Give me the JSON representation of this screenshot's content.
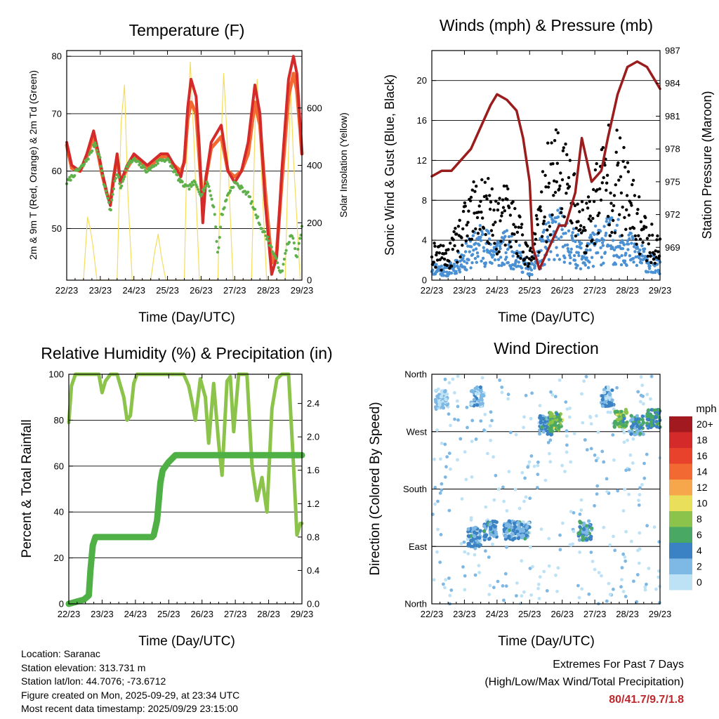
{
  "panels": {
    "temperature": {
      "title": "Temperature (F)",
      "left_label": "2m & 9m T (Red, Orange) & 2m Td (Green)",
      "right_label": "Solar Insolation (Yellow)",
      "xlabel": "Time (Day/UTC)"
    },
    "winds": {
      "title": "Winds (mph) & Pressure (mb)",
      "left_label": "Sonic Wind & Gust (Blue, Black)",
      "right_label": "Station Pressure (Maroon)",
      "xlabel": "Time (Day/UTC)"
    },
    "humidity": {
      "title": "Relative Humidity (%) & Precipitation (in)",
      "left_label": "Percent & Total Rainfall",
      "xlabel": "Time (Day/UTC)"
    },
    "direction": {
      "title": "Wind Direction",
      "left_label": "Direction (Colored By Speed)",
      "xlabel": "Time (Day/UTC)"
    }
  },
  "legend": {
    "unit": "mph",
    "labels": [
      "20+",
      "18",
      "16",
      "14",
      "12",
      "10",
      "8",
      "6",
      "4",
      "2",
      "0"
    ],
    "colors": [
      "#a21a1f",
      "#d42a2a",
      "#e8412c",
      "#f26a31",
      "#f6a74c",
      "#e9df5a",
      "#8cc44b",
      "#4aa865",
      "#3b82c4",
      "#7eb8e4",
      "#bde2f5"
    ]
  },
  "info": {
    "location": "Location: Saranac",
    "elevation": "Station elevation: 313.731 m",
    "latlon": "Station lat/lon: 44.7076; -73.6712",
    "created": "Figure created on Mon, 2025-09-29, at 23:34 UTC",
    "recent": "Most recent data timestamp: 2025/09/29 23:15:00"
  },
  "extremes": {
    "title": "Extremes For Past 7 Days",
    "subtitle": "(High/Low/Max Wind/Total Precipitation)",
    "value": "80/41.7/9.7/1.8"
  },
  "chart_data": [
    {
      "type": "line",
      "title": "Temperature (F)",
      "xlabel": "Time (Day/UTC)",
      "x_ticks": [
        "22/23",
        "23/23",
        "24/23",
        "25/23",
        "26/23",
        "27/23",
        "28/23",
        "29/23"
      ],
      "xlim": [
        0,
        7
      ],
      "ylabel": "2m & 9m T (Red, Orange) & 2m Td (Green)",
      "ylim": [
        41,
        81
      ],
      "yticks": [
        50,
        60,
        70,
        80
      ],
      "y2label": "Solar Insolation (Yellow)",
      "y2lim": [
        0,
        800
      ],
      "y2ticks": [
        0,
        200,
        400,
        600
      ],
      "series": [
        {
          "name": "2m T",
          "color": "#d42a2a",
          "axis": "left",
          "x": [
            0,
            0.15,
            0.4,
            0.6,
            0.8,
            0.95,
            1.05,
            1.2,
            1.3,
            1.4,
            1.5,
            1.6,
            1.8,
            2.0,
            2.2,
            2.4,
            2.6,
            2.8,
            3.0,
            3.2,
            3.4,
            3.5,
            3.6,
            3.7,
            3.85,
            3.95,
            4.05,
            4.15,
            4.3,
            4.6,
            4.8,
            5.0,
            5.2,
            5.4,
            5.6,
            5.75,
            5.9,
            6.1,
            6.25,
            6.4,
            6.6,
            6.75,
            6.85,
            6.95,
            7.0
          ],
          "y": [
            65,
            61,
            60,
            63,
            67,
            63,
            60,
            56,
            54,
            59,
            63,
            58,
            61,
            63,
            62,
            61,
            62,
            63,
            63,
            61,
            59,
            62,
            71,
            76,
            73,
            64,
            51,
            59,
            65,
            68,
            60,
            58,
            60,
            65,
            75,
            70,
            55,
            42,
            45,
            60,
            76,
            80,
            77,
            68,
            63
          ]
        },
        {
          "name": "9m T",
          "color": "#f26a31",
          "axis": "left",
          "x": [
            0,
            0.15,
            0.4,
            0.6,
            0.8,
            0.95,
            1.05,
            1.2,
            1.3,
            1.4,
            1.5,
            1.6,
            1.8,
            2.0,
            2.2,
            2.4,
            2.6,
            2.8,
            3.0,
            3.2,
            3.4,
            3.5,
            3.6,
            3.7,
            3.85,
            3.95,
            4.05,
            4.15,
            4.3,
            4.6,
            4.8,
            5.0,
            5.2,
            5.4,
            5.6,
            5.75,
            5.9,
            6.1,
            6.25,
            6.4,
            6.6,
            6.75,
            6.85,
            6.95,
            7.0
          ],
          "y": [
            64.5,
            60.5,
            60,
            62.5,
            66,
            62.5,
            59.5,
            56,
            54.5,
            59,
            62.5,
            58,
            60.5,
            62.5,
            61.5,
            60.5,
            61.5,
            62.5,
            62.5,
            61,
            60,
            61.5,
            69,
            72,
            70,
            62,
            54,
            59,
            64,
            66,
            60,
            59,
            60,
            63,
            72,
            68,
            57,
            44,
            46,
            58,
            73,
            77,
            74,
            67,
            63
          ]
        },
        {
          "name": "2m Td",
          "color": "#5fb04a",
          "axis": "left",
          "x": [
            0,
            0.3,
            0.5,
            0.7,
            0.85,
            1.0,
            1.1,
            1.2,
            1.3,
            1.4,
            1.5,
            1.6,
            1.8,
            2.0,
            2.2,
            2.4,
            2.6,
            2.8,
            3.0,
            3.2,
            3.4,
            3.6,
            3.8,
            4.0,
            4.2,
            4.4,
            4.5,
            4.6,
            4.8,
            5.0,
            5.2,
            5.4,
            5.6,
            5.8,
            6.0,
            6.2,
            6.4,
            6.55,
            6.7,
            6.85,
            7.0
          ],
          "y": [
            58,
            60,
            61,
            63,
            65,
            62,
            58,
            56,
            53,
            57,
            60,
            57,
            61,
            62,
            61,
            60,
            61,
            62,
            62,
            60,
            58,
            57,
            58,
            56,
            58,
            53,
            45,
            52,
            56,
            58,
            57,
            56,
            53,
            50,
            48,
            45,
            42,
            47,
            49,
            45,
            50
          ]
        },
        {
          "name": "Solar Insolation",
          "color": "#f5dc5c",
          "axis": "right",
          "x": [
            0.5,
            0.62,
            0.7,
            0.78,
            0.9,
            1.5,
            1.62,
            1.72,
            1.82,
            1.95,
            2.5,
            2.62,
            2.72,
            2.82,
            2.95,
            3.5,
            3.6,
            3.68,
            3.78,
            3.95,
            4.5,
            4.6,
            4.67,
            4.75,
            4.95,
            5.5,
            5.6,
            5.67,
            5.75,
            5.95,
            6.5,
            6.6,
            6.67,
            6.75,
            6.95
          ],
          "y": [
            0,
            220,
            180,
            120,
            0,
            0,
            550,
            680,
            300,
            0,
            0,
            100,
            160,
            80,
            0,
            0,
            580,
            760,
            500,
            0,
            0,
            500,
            720,
            550,
            0,
            0,
            520,
            700,
            480,
            0,
            0,
            450,
            660,
            420,
            0
          ]
        }
      ]
    },
    {
      "type": "scatter",
      "title": "Winds (mph) & Pressure (mb)",
      "xlabel": "Time (Day/UTC)",
      "x_ticks": [
        "22/23",
        "23/23",
        "24/23",
        "25/23",
        "26/23",
        "27/23",
        "28/23",
        "29/23"
      ],
      "xlim": [
        0,
        7
      ],
      "ylabel": "Sonic Wind & Gust (Blue, Black)",
      "ylim": [
        0,
        23
      ],
      "yticks": [
        0,
        4,
        8,
        12,
        16,
        20
      ],
      "y2label": "Station Pressure (Maroon)",
      "y2lim": [
        966,
        987
      ],
      "y2ticks": [
        969,
        972,
        975,
        978,
        981,
        984,
        987
      ],
      "series": [
        {
          "name": "Sonic Wind (envelope)",
          "color": "#4a90d2",
          "axis": "left",
          "x": [
            0,
            0.5,
            1.0,
            1.5,
            1.9,
            2.3,
            2.7,
            3.0,
            3.3,
            3.6,
            3.9,
            4.3,
            4.7,
            5.0,
            5.4,
            5.8,
            6.2,
            6.6,
            7.0
          ],
          "y": [
            2.0,
            1.5,
            3.5,
            6.0,
            4.5,
            5.0,
            3.5,
            1.5,
            4.0,
            6.5,
            7.5,
            5.5,
            3.5,
            5.5,
            6.5,
            6.0,
            4.5,
            3.0,
            2.0
          ]
        },
        {
          "name": "Gust",
          "color": "#000000",
          "axis": "left",
          "x": [
            0,
            0.5,
            1.0,
            1.5,
            1.9,
            2.3,
            2.7,
            3.0,
            3.3,
            3.6,
            3.9,
            4.3,
            4.7,
            5.0,
            5.4,
            5.8,
            6.2,
            6.6,
            7.0
          ],
          "y": [
            3.5,
            3.0,
            7.0,
            11.0,
            8.0,
            9.0,
            6.5,
            2.5,
            8.0,
            13.5,
            15.0,
            11.5,
            7.0,
            11.0,
            15.0,
            13.5,
            9.0,
            6.0,
            4.0
          ]
        },
        {
          "name": "Station Pressure",
          "color": "#9b1c1c",
          "axis": "right",
          "x": [
            0,
            0.3,
            0.6,
            0.9,
            1.2,
            1.5,
            1.8,
            2.0,
            2.3,
            2.6,
            2.8,
            3.0,
            3.1,
            3.3,
            3.6,
            3.9,
            4.1,
            4.4,
            4.6,
            4.9,
            5.2,
            5.4,
            5.7,
            6.0,
            6.3,
            6.6,
            6.9,
            7.0
          ],
          "y": [
            975.5,
            976,
            976,
            977,
            978,
            980,
            982,
            983,
            982.5,
            981.5,
            979,
            975,
            969,
            967,
            969,
            971,
            971,
            974,
            979,
            975,
            976,
            979,
            983,
            985.5,
            986,
            985.5,
            984,
            983.5
          ]
        }
      ]
    },
    {
      "type": "line",
      "title": "Relative Humidity (%) & Precipitation (in)",
      "xlabel": "Time (Day/UTC)",
      "x_ticks": [
        "22/23",
        "23/23",
        "24/23",
        "25/23",
        "26/23",
        "27/23",
        "28/23",
        "29/23"
      ],
      "xlim": [
        0,
        7
      ],
      "ylabel": "Percent & Total Rainfall",
      "ylim": [
        0,
        100
      ],
      "yticks": [
        0,
        20,
        40,
        60,
        80,
        100
      ],
      "y2lim": [
        0,
        2.75
      ],
      "y2ticks": [
        0.0,
        0.4,
        0.8,
        1.2,
        1.6,
        2.0,
        2.4
      ],
      "series": [
        {
          "name": "Relative Humidity",
          "color": "#8cc44b",
          "axis": "left",
          "x": [
            0,
            0.08,
            0.2,
            0.9,
            1.0,
            1.1,
            1.25,
            1.45,
            1.65,
            1.75,
            1.85,
            1.95,
            2.05,
            2.2,
            3.45,
            3.6,
            3.7,
            3.8,
            3.95,
            4.1,
            4.2,
            4.35,
            4.5,
            4.6,
            4.75,
            4.85,
            4.95,
            5.1,
            5.25,
            5.35,
            5.5,
            5.65,
            5.8,
            5.95,
            6.1,
            6.25,
            6.4,
            6.6,
            6.75,
            6.85,
            6.95,
            7.0
          ],
          "y": [
            79,
            95,
            100,
            100,
            92,
            97,
            100,
            100,
            90,
            80,
            82,
            96,
            100,
            100,
            100,
            95,
            88,
            80,
            98,
            90,
            70,
            96,
            70,
            56,
            97,
            99,
            75,
            100,
            100,
            100,
            60,
            45,
            55,
            40,
            85,
            98,
            100,
            100,
            60,
            30,
            35,
            35
          ]
        },
        {
          "name": "Total Precipitation",
          "color": "#4fb045",
          "axis": "right",
          "x": [
            0,
            0.45,
            0.6,
            0.65,
            0.72,
            0.8,
            2.5,
            2.55,
            2.65,
            2.75,
            2.82,
            3.0,
            3.2,
            3.5,
            7.0
          ],
          "y": [
            0,
            0.05,
            0.1,
            0.4,
            0.7,
            0.8,
            0.8,
            0.82,
            1.0,
            1.45,
            1.6,
            1.7,
            1.78,
            1.78,
            1.78
          ]
        }
      ]
    },
    {
      "type": "scatter",
      "title": "Wind Direction",
      "xlabel": "Time (Day/UTC)",
      "x_ticks": [
        "22/23",
        "23/23",
        "24/23",
        "25/23",
        "26/23",
        "27/23",
        "28/23",
        "29/23"
      ],
      "xlim": [
        0,
        7
      ],
      "ylabel": "Direction (Colored By Speed)",
      "ylim": [
        0,
        360
      ],
      "ytick_values": [
        0,
        90,
        180,
        270,
        360
      ],
      "ytick_labels": [
        "North",
        "East",
        "South",
        "West",
        "North"
      ],
      "clusters": [
        {
          "x": 0.3,
          "y": 320,
          "speed": 1
        },
        {
          "x": 1.3,
          "y": 105,
          "speed": 3
        },
        {
          "x": 1.4,
          "y": 325,
          "speed": 2
        },
        {
          "x": 1.8,
          "y": 115,
          "speed": 3
        },
        {
          "x": 2.4,
          "y": 115,
          "speed": 3
        },
        {
          "x": 2.8,
          "y": 115,
          "speed": 3
        },
        {
          "x": 3.5,
          "y": 280,
          "speed": 4
        },
        {
          "x": 3.8,
          "y": 285,
          "speed": 7
        },
        {
          "x": 4.7,
          "y": 115,
          "speed": 4
        },
        {
          "x": 5.4,
          "y": 325,
          "speed": 2
        },
        {
          "x": 5.8,
          "y": 290,
          "speed": 7
        },
        {
          "x": 6.3,
          "y": 280,
          "speed": 4
        },
        {
          "x": 6.8,
          "y": 290,
          "speed": 5
        }
      ]
    }
  ]
}
